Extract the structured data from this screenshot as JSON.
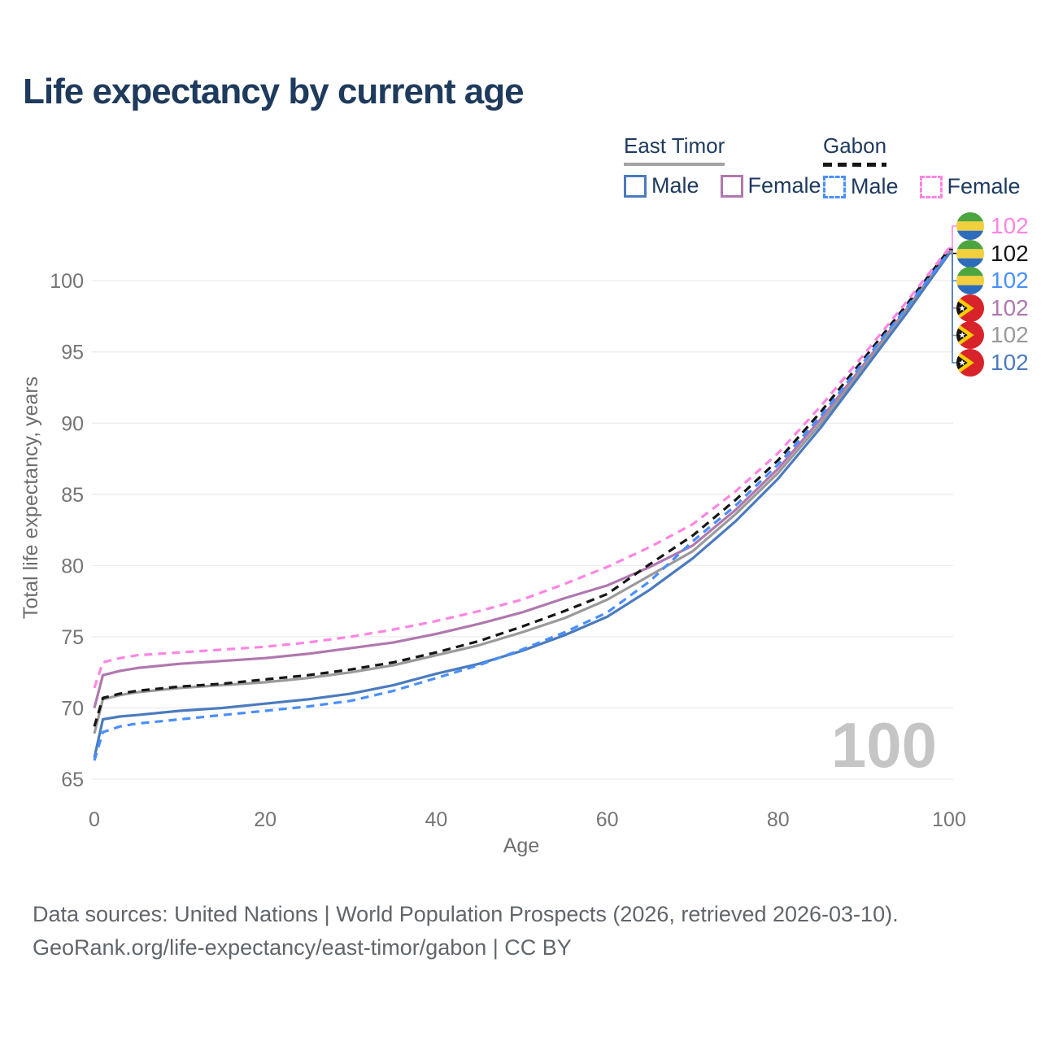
{
  "title": "Life expectancy by current age",
  "legend": {
    "groups": [
      {
        "label": "East Timor",
        "style": "solid"
      },
      {
        "label": "Gabon",
        "style": "dashed"
      }
    ],
    "male_label": "Male",
    "female_label": "Female"
  },
  "chart_data": {
    "type": "line",
    "title": "Life expectancy by current age",
    "xlabel": "Age",
    "ylabel": "Total life expectancy, years",
    "xlim": [
      0,
      100
    ],
    "ylim": [
      65,
      104
    ],
    "xticks": [
      0,
      20,
      40,
      60,
      80,
      100
    ],
    "yticks": [
      65,
      70,
      75,
      80,
      85,
      90,
      95,
      100
    ],
    "grid": true,
    "legend_position": "top-right",
    "age_watermark": "100",
    "x": [
      0,
      1,
      3,
      5,
      10,
      15,
      20,
      25,
      30,
      35,
      40,
      45,
      50,
      55,
      60,
      65,
      70,
      75,
      80,
      85,
      90,
      95,
      100
    ],
    "series": [
      {
        "key": "ga_female",
        "name": "Gabon Female",
        "country": "Gabon",
        "sex": "Female",
        "color": "#ff85e2",
        "dash": true,
        "flag": "gabon",
        "end_label": "102",
        "values": [
          71.4,
          73.2,
          73.5,
          73.7,
          73.9,
          74.1,
          74.3,
          74.6,
          75.0,
          75.5,
          76.1,
          76.8,
          77.6,
          78.7,
          79.9,
          81.3,
          82.9,
          85.2,
          87.9,
          91.2,
          94.8,
          98.5,
          102.3
        ]
      },
      {
        "key": "ga_all",
        "name": "Gabon",
        "country": "Gabon",
        "sex": "Both",
        "color": "#161616",
        "dash": true,
        "flag": "gabon",
        "end_label": "102",
        "values": [
          68.7,
          70.7,
          71.0,
          71.2,
          71.5,
          71.7,
          72.0,
          72.3,
          72.7,
          73.2,
          73.9,
          74.7,
          75.7,
          76.8,
          78.0,
          80.1,
          82.1,
          84.6,
          87.4,
          90.8,
          94.5,
          98.3,
          102.2
        ]
      },
      {
        "key": "ga_male",
        "name": "Gabon Male",
        "country": "Gabon",
        "sex": "Male",
        "color": "#4a8fff",
        "dash": true,
        "flag": "gabon",
        "end_label": "102",
        "values": [
          66.3,
          68.3,
          68.7,
          68.9,
          69.2,
          69.5,
          69.8,
          70.1,
          70.5,
          71.2,
          72.1,
          73.0,
          74.1,
          75.3,
          76.7,
          78.9,
          81.7,
          84.2,
          87.1,
          90.5,
          94.3,
          98.1,
          102.0
        ]
      },
      {
        "key": "et_female",
        "name": "East Timor Female",
        "country": "East Timor",
        "sex": "Female",
        "color": "#b078ae",
        "dash": false,
        "flag": "east_timor",
        "end_label": "102",
        "values": [
          70.0,
          72.3,
          72.6,
          72.8,
          73.1,
          73.3,
          73.5,
          73.8,
          74.2,
          74.6,
          75.2,
          75.9,
          76.7,
          77.7,
          78.6,
          79.9,
          81.4,
          83.9,
          86.8,
          90.3,
          94.1,
          98.0,
          102.1
        ]
      },
      {
        "key": "et_all",
        "name": "East Timor",
        "country": "East Timor",
        "sex": "Both",
        "color": "#9a9a9a",
        "dash": false,
        "flag": "east_timor",
        "end_label": "102",
        "values": [
          68.2,
          70.6,
          70.9,
          71.1,
          71.4,
          71.6,
          71.8,
          72.1,
          72.5,
          73.0,
          73.7,
          74.4,
          75.3,
          76.3,
          77.6,
          79.3,
          81.0,
          83.6,
          86.5,
          90.0,
          93.9,
          97.9,
          102.0
        ]
      },
      {
        "key": "et_male",
        "name": "East Timor Male",
        "country": "East Timor",
        "sex": "Male",
        "color": "#4b7bbe",
        "dash": false,
        "flag": "east_timor",
        "end_label": "102",
        "values": [
          66.5,
          69.2,
          69.4,
          69.5,
          69.8,
          70.0,
          70.3,
          70.6,
          71.0,
          71.6,
          72.4,
          73.1,
          74.0,
          75.1,
          76.4,
          78.3,
          80.5,
          83.1,
          86.1,
          89.7,
          93.7,
          97.7,
          101.9
        ]
      }
    ],
    "colors": {
      "grid": "#ececec",
      "tick_text": "#757575",
      "axis_title_text": "#6e6e6e",
      "watermark": "#c5c5c5",
      "title_text": "#1e3a5c",
      "legend_text": "#1e3a5f",
      "footer_text": "#60666b"
    },
    "flags": {
      "gabon": {
        "green": "#4da53f",
        "yellow": "#f2cf3e",
        "blue": "#2d6bbd"
      },
      "east_timor": {
        "red": "#d8232a",
        "yellow": "#ffcc00",
        "black": "#141414",
        "white": "#ffffff"
      }
    }
  },
  "footer": {
    "line1": "Data sources: United Nations | World Population Prospects (2026, retrieved 2026-03-10).",
    "line2": "GeoRank.org/life-expectancy/east-timor/gabon | CC BY"
  }
}
